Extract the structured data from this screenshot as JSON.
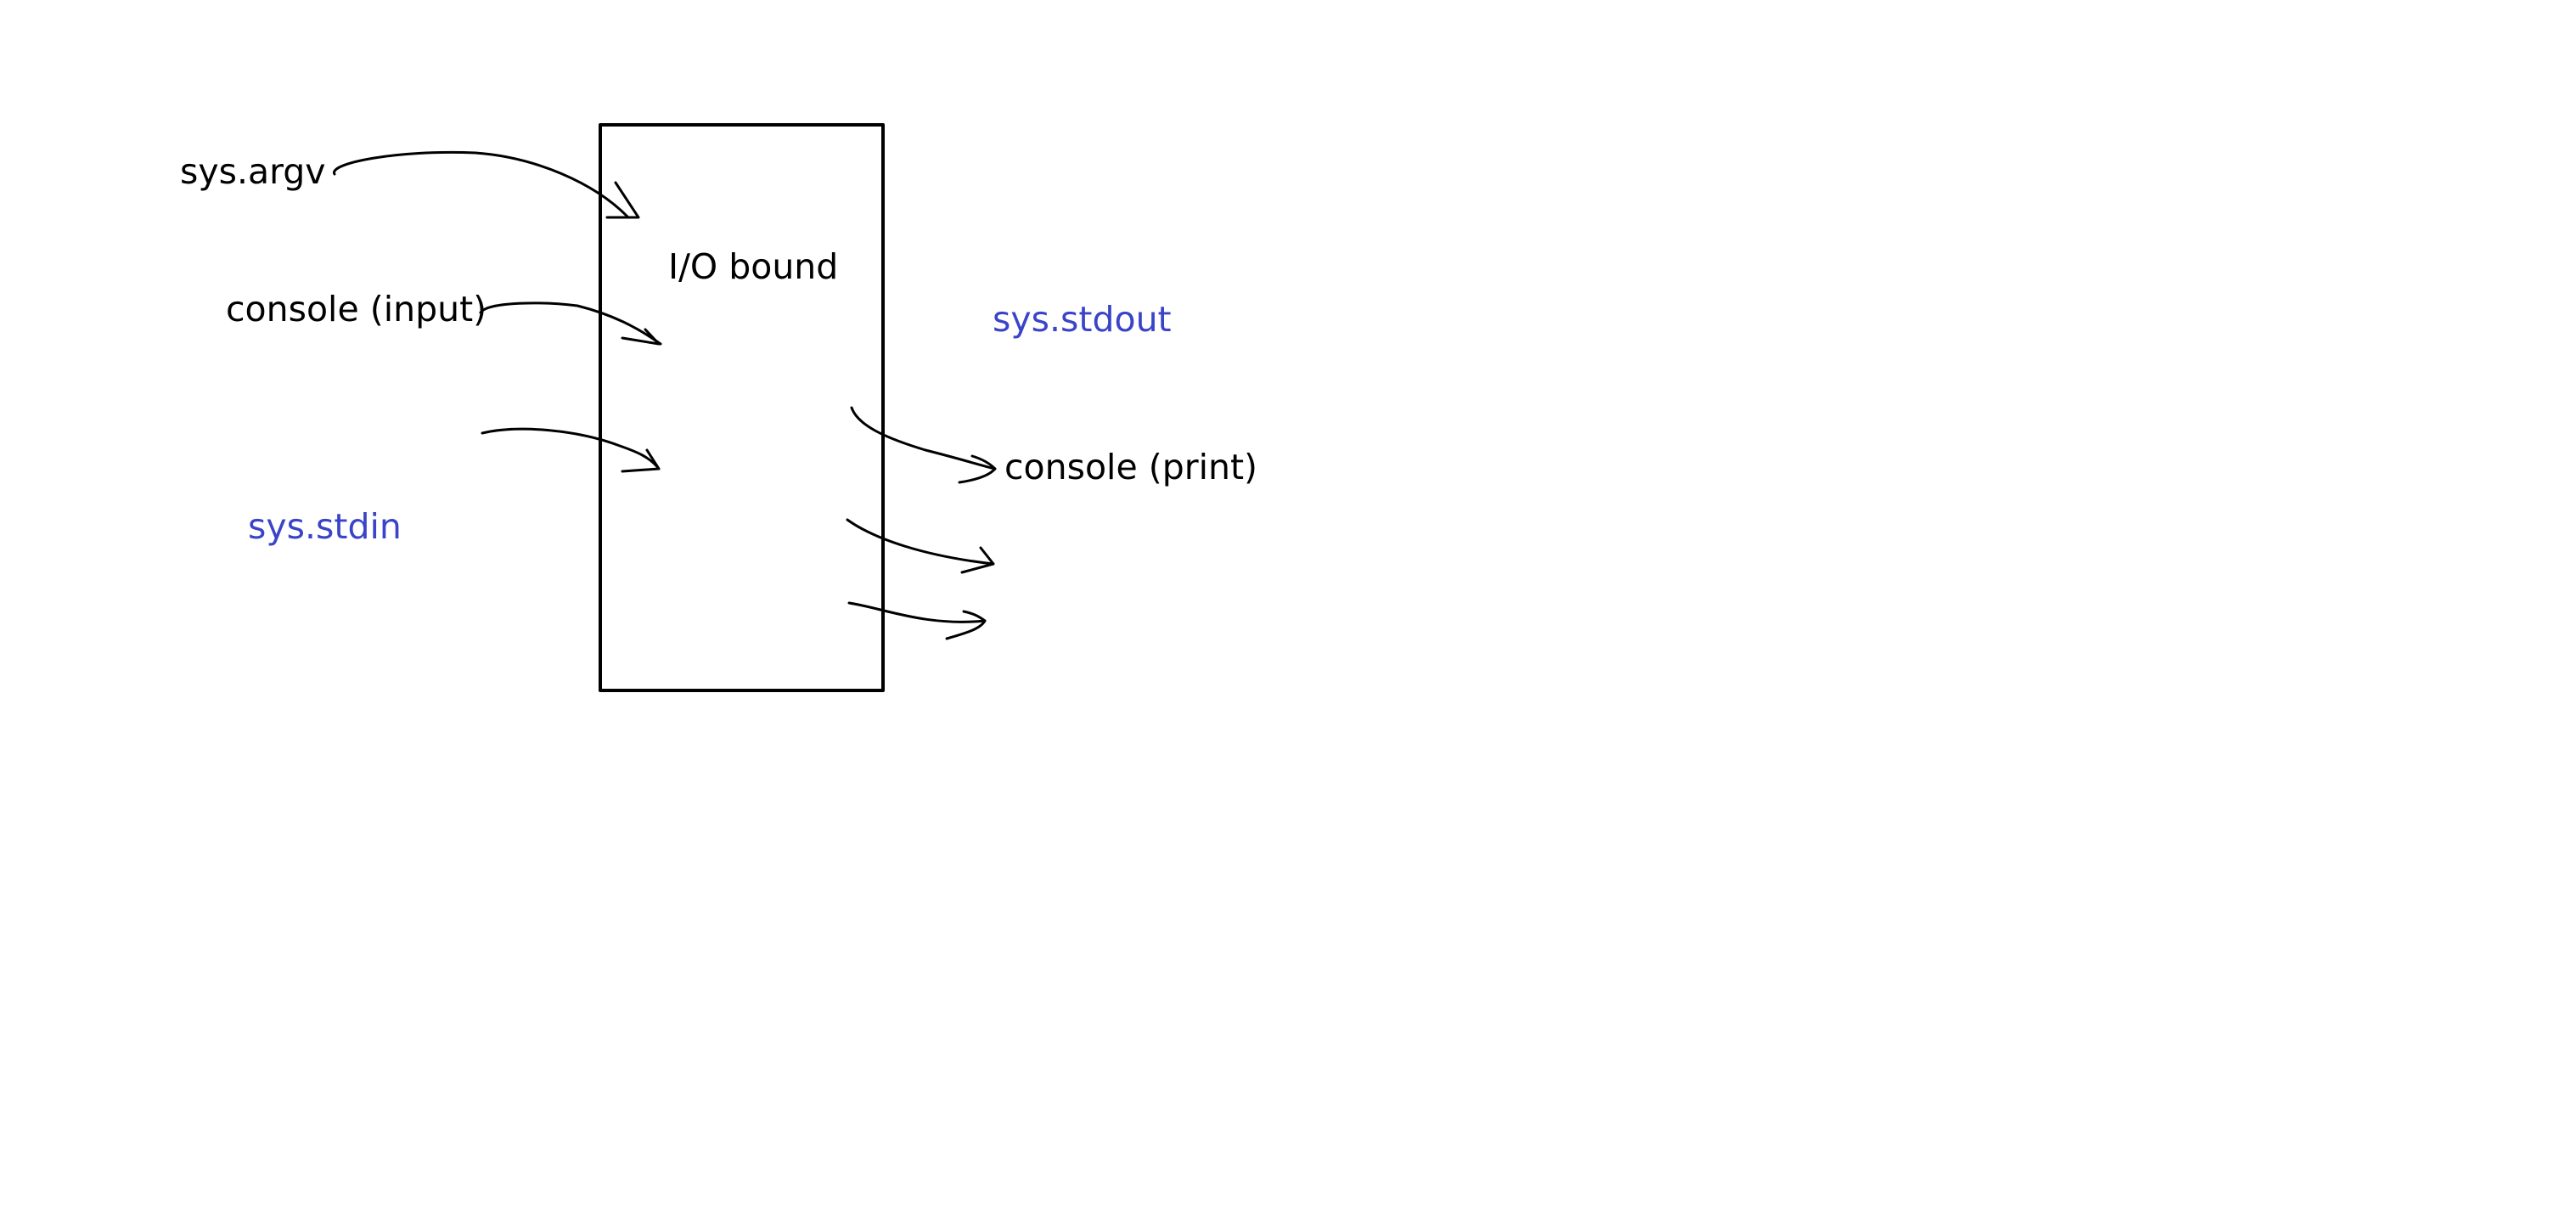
{
  "diagram": {
    "box_label": "I/O bound",
    "inputs": {
      "argv": "sys.argv",
      "console_input": "console (input)",
      "stdin": "sys.stdin"
    },
    "outputs": {
      "stdout": "sys.stdout",
      "console_print": "console (print)"
    }
  },
  "colors": {
    "ink": "#000000",
    "accent_blue": "#3a44c8",
    "background": "#ffffff"
  }
}
